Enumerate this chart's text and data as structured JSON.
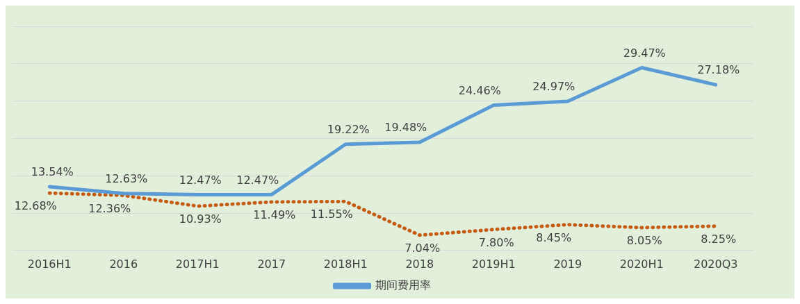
{
  "chart_data": {
    "type": "line",
    "categories": [
      "2016H1",
      "2016",
      "2017H1",
      "2017",
      "2018H1",
      "2018",
      "2019H1",
      "2019",
      "2020H1",
      "2020Q3"
    ],
    "series": [
      {
        "name": "期间费用率",
        "color": "#5b9bd5",
        "line_style": "solid",
        "values": [
          13.54,
          12.63,
          12.47,
          12.47,
          19.22,
          19.48,
          24.46,
          24.97,
          29.47,
          27.18
        ],
        "value_labels": [
          "13.54%",
          "12.63%",
          "12.47%",
          "12.47%",
          "19.22%",
          "19.48%",
          "24.46%",
          "24.97%",
          "29.47%",
          "27.18%"
        ]
      },
      {
        "color": "#c55a11",
        "line_style": "dotted",
        "values": [
          12.68,
          12.36,
          10.93,
          11.49,
          11.55,
          7.04,
          7.8,
          8.45,
          8.05,
          8.25
        ],
        "value_labels": [
          "12.68%",
          "12.36%",
          "10.93%",
          "11.49%",
          "11.55%",
          "7.04%",
          "7.80%",
          "8.45%",
          "8.05%",
          "8.25%"
        ]
      }
    ],
    "tick_labels": "x",
    "grid": "y",
    "legend": "bottom",
    "marker": "none"
  }
}
